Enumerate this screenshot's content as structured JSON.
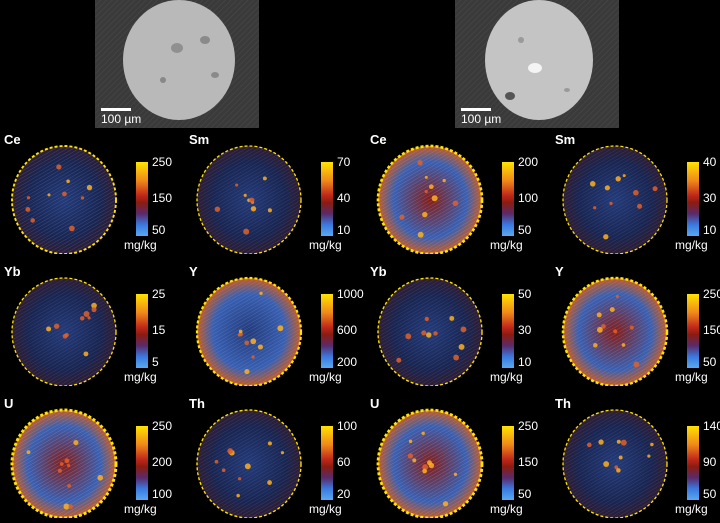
{
  "sem_images": [
    {
      "id": "sem-left",
      "scale_label": "100 µm"
    },
    {
      "id": "sem-right",
      "scale_label": "100 µm"
    }
  ],
  "colors": {
    "low": "#2b6fd6",
    "mid": "#8a1c12",
    "high": "#ffe300",
    "background": "#000000"
  },
  "unit": "mg/kg",
  "panels": [
    {
      "element": "Ce",
      "ticks": [
        "250",
        "150",
        "50"
      ],
      "intensity": 0.3,
      "sample": "left"
    },
    {
      "element": "Sm",
      "ticks": [
        "70",
        "40",
        "10"
      ],
      "intensity": 0.1,
      "sample": "left"
    },
    {
      "element": "Ce",
      "ticks": [
        "200",
        "100",
        "50"
      ],
      "intensity": 0.55,
      "sample": "right"
    },
    {
      "element": "Sm",
      "ticks": [
        "40",
        "30",
        "10"
      ],
      "intensity": 0.08,
      "sample": "right"
    },
    {
      "element": "Yb",
      "ticks": [
        "25",
        "15",
        "5"
      ],
      "intensity": 0.1,
      "sample": "left"
    },
    {
      "element": "Y",
      "ticks": [
        "1000",
        "600",
        "200"
      ],
      "intensity": 0.4,
      "sample": "left"
    },
    {
      "element": "Yb",
      "ticks": [
        "50",
        "30",
        "10"
      ],
      "intensity": 0.12,
      "sample": "right"
    },
    {
      "element": "Y",
      "ticks": [
        "250",
        "150",
        "50"
      ],
      "intensity": 0.5,
      "sample": "right"
    },
    {
      "element": "U",
      "ticks": [
        "250",
        "200",
        "100"
      ],
      "intensity": 0.65,
      "sample": "left"
    },
    {
      "element": "Th",
      "ticks": [
        "100",
        "60",
        "20"
      ],
      "intensity": 0.12,
      "sample": "left"
    },
    {
      "element": "U",
      "ticks": [
        "250",
        "150",
        "50"
      ],
      "intensity": 0.6,
      "sample": "right"
    },
    {
      "element": "Th",
      "ticks": [
        "140",
        "90",
        "50"
      ],
      "intensity": 0.1,
      "sample": "right"
    }
  ]
}
